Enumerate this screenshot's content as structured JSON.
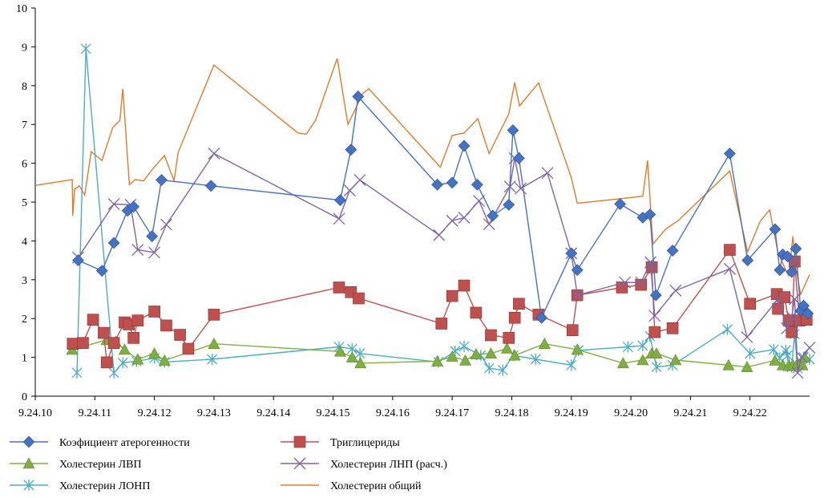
{
  "chart_data": {
    "type": "line",
    "ylim": [
      0,
      10
    ],
    "xlim": [
      10,
      23
    ],
    "yticks": [
      "0",
      "1",
      "2",
      "3",
      "4",
      "5",
      "6",
      "7",
      "8",
      "9",
      "10"
    ],
    "xticks": [
      {
        "x": 10,
        "label": "9.24.10"
      },
      {
        "x": 11,
        "label": "9.24.11"
      },
      {
        "x": 12,
        "label": "9.24.12"
      },
      {
        "x": 13,
        "label": "9.24.13"
      },
      {
        "x": 14,
        "label": "9.24.14"
      },
      {
        "x": 15,
        "label": "9.24.15"
      },
      {
        "x": 16,
        "label": "9.24.16"
      },
      {
        "x": 17,
        "label": "9.24.17"
      },
      {
        "x": 18,
        "label": "9.24.18"
      },
      {
        "x": 19,
        "label": "9.24.19"
      },
      {
        "x": 20,
        "label": "9.24.20"
      },
      {
        "x": 21,
        "label": "9.24.21"
      },
      {
        "x": 22,
        "label": "9.24.22"
      }
    ],
    "series": [
      {
        "name": "Холестерин общий",
        "color": "#E07B2A",
        "marker": "none",
        "points": [
          [
            10.0,
            5.43
          ],
          [
            10.62,
            5.58
          ],
          [
            10.63,
            4.65
          ],
          [
            10.66,
            5.33
          ],
          [
            10.74,
            5.42
          ],
          [
            10.83,
            5.18
          ],
          [
            10.94,
            6.3
          ],
          [
            11.12,
            6.07
          ],
          [
            11.3,
            6.92
          ],
          [
            11.42,
            7.1
          ],
          [
            11.47,
            7.92
          ],
          [
            11.58,
            5.45
          ],
          [
            11.68,
            5.58
          ],
          [
            11.82,
            5.55
          ],
          [
            11.96,
            5.83
          ],
          [
            12.17,
            6.2
          ],
          [
            12.33,
            5.55
          ],
          [
            12.4,
            6.28
          ],
          [
            13.0,
            8.53
          ],
          [
            14.41,
            6.78
          ],
          [
            14.55,
            6.75
          ],
          [
            14.71,
            7.12
          ],
          [
            15.07,
            8.7
          ],
          [
            15.25,
            7.0
          ],
          [
            15.5,
            7.8
          ],
          [
            15.6,
            7.92
          ],
          [
            16.8,
            5.9
          ],
          [
            17.0,
            6.72
          ],
          [
            17.2,
            6.78
          ],
          [
            17.43,
            7.15
          ],
          [
            17.62,
            6.25
          ],
          [
            17.95,
            7.27
          ],
          [
            18.05,
            8.08
          ],
          [
            18.13,
            7.48
          ],
          [
            18.25,
            7.7
          ],
          [
            18.45,
            8.07
          ],
          [
            19.0,
            5.63
          ],
          [
            19.1,
            4.97
          ],
          [
            19.9,
            5.1
          ],
          [
            20.2,
            5.15
          ],
          [
            20.28,
            6.07
          ],
          [
            20.37,
            3.92
          ],
          [
            20.58,
            4.3
          ],
          [
            20.8,
            4.53
          ],
          [
            21.66,
            5.8
          ],
          [
            21.96,
            3.72
          ],
          [
            22.17,
            4.5
          ],
          [
            22.33,
            4.8
          ],
          [
            22.47,
            3.7
          ],
          [
            22.6,
            3.25
          ],
          [
            22.65,
            3.1
          ],
          [
            22.72,
            4.12
          ],
          [
            22.77,
            3.3
          ],
          [
            22.85,
            2.62
          ],
          [
            23.0,
            3.13
          ]
        ]
      },
      {
        "name": "Холестерин ЛОНП",
        "color": "#4BACC6",
        "marker": "asterisk",
        "points": [
          [
            10.7,
            0.6
          ],
          [
            10.85,
            8.95
          ],
          [
            11.32,
            0.6
          ],
          [
            11.47,
            0.86
          ],
          [
            11.7,
            0.9
          ],
          [
            12.0,
            0.98
          ],
          [
            12.17,
            0.88
          ],
          [
            12.97,
            0.95
          ],
          [
            15.1,
            1.27
          ],
          [
            15.32,
            1.22
          ],
          [
            15.45,
            1.1
          ],
          [
            16.77,
            0.88
          ],
          [
            17.05,
            1.16
          ],
          [
            17.2,
            1.28
          ],
          [
            17.48,
            1.05
          ],
          [
            17.62,
            0.72
          ],
          [
            17.85,
            0.67
          ],
          [
            18.03,
            1.05
          ],
          [
            18.4,
            0.95
          ],
          [
            19.0,
            0.8
          ],
          [
            19.12,
            1.18
          ],
          [
            19.95,
            1.27
          ],
          [
            20.2,
            1.3
          ],
          [
            20.32,
            1.55
          ],
          [
            20.43,
            0.75
          ],
          [
            20.7,
            0.8
          ],
          [
            21.62,
            1.72
          ],
          [
            22.0,
            1.1
          ],
          [
            22.4,
            1.2
          ],
          [
            22.5,
            0.98
          ],
          [
            22.6,
            1.18
          ],
          [
            22.63,
            1.05
          ],
          [
            22.7,
            0.75
          ],
          [
            22.75,
            1.6
          ],
          [
            22.8,
            0.72
          ],
          [
            22.85,
            0.88
          ],
          [
            22.9,
            1.0
          ],
          [
            23.0,
            0.95
          ]
        ]
      },
      {
        "name": "Холестерин ЛВП",
        "color": "#7FAF42",
        "marker": "triangle",
        "points": [
          [
            10.62,
            1.2
          ],
          [
            11.2,
            1.45
          ],
          [
            11.35,
            1.4
          ],
          [
            11.5,
            1.2
          ],
          [
            11.72,
            0.95
          ],
          [
            12.0,
            1.1
          ],
          [
            12.17,
            0.92
          ],
          [
            13.0,
            1.35
          ],
          [
            15.12,
            1.15
          ],
          [
            15.32,
            1.0
          ],
          [
            15.46,
            0.85
          ],
          [
            16.75,
            0.9
          ],
          [
            17.0,
            1.02
          ],
          [
            17.22,
            0.92
          ],
          [
            17.4,
            1.08
          ],
          [
            17.65,
            1.1
          ],
          [
            17.92,
            1.23
          ],
          [
            18.05,
            1.05
          ],
          [
            18.55,
            1.35
          ],
          [
            19.1,
            1.2
          ],
          [
            19.87,
            0.85
          ],
          [
            20.2,
            0.93
          ],
          [
            20.35,
            1.1
          ],
          [
            20.43,
            1.1
          ],
          [
            20.75,
            0.93
          ],
          [
            21.64,
            0.8
          ],
          [
            21.95,
            0.75
          ],
          [
            22.42,
            0.92
          ],
          [
            22.55,
            0.8
          ],
          [
            22.65,
            0.78
          ],
          [
            22.72,
            0.8
          ],
          [
            22.8,
            0.85
          ],
          [
            22.88,
            0.8
          ],
          [
            22.92,
            1.0
          ]
        ]
      },
      {
        "name": "Триглицериды",
        "color": "#C0504D",
        "marker": "square",
        "points": [
          [
            10.63,
            1.35
          ],
          [
            10.8,
            1.37
          ],
          [
            10.97,
            1.97
          ],
          [
            11.15,
            1.63
          ],
          [
            11.2,
            0.87
          ],
          [
            11.32,
            1.37
          ],
          [
            11.5,
            1.9
          ],
          [
            11.57,
            1.85
          ],
          [
            11.65,
            1.5
          ],
          [
            11.72,
            1.95
          ],
          [
            12.0,
            2.18
          ],
          [
            12.2,
            1.82
          ],
          [
            12.43,
            1.58
          ],
          [
            12.57,
            1.22
          ],
          [
            13.0,
            2.1
          ],
          [
            15.1,
            2.8
          ],
          [
            15.3,
            2.68
          ],
          [
            15.43,
            2.52
          ],
          [
            16.82,
            1.87
          ],
          [
            17.0,
            2.58
          ],
          [
            17.2,
            2.85
          ],
          [
            17.4,
            2.15
          ],
          [
            17.65,
            1.57
          ],
          [
            17.95,
            1.5
          ],
          [
            18.05,
            2.02
          ],
          [
            18.12,
            2.38
          ],
          [
            18.45,
            2.1
          ],
          [
            19.02,
            1.7
          ],
          [
            19.1,
            2.6
          ],
          [
            19.85,
            2.8
          ],
          [
            20.17,
            2.87
          ],
          [
            20.35,
            3.32
          ],
          [
            20.4,
            1.65
          ],
          [
            20.7,
            1.75
          ],
          [
            21.66,
            3.77
          ],
          [
            22.0,
            2.38
          ],
          [
            22.45,
            2.63
          ],
          [
            22.47,
            2.25
          ],
          [
            22.58,
            2.55
          ],
          [
            22.65,
            1.95
          ],
          [
            22.7,
            1.65
          ],
          [
            22.75,
            3.47
          ],
          [
            22.83,
            1.95
          ],
          [
            22.95,
            1.97
          ]
        ]
      },
      {
        "name": "Холестерин ЛНП (расч.)",
        "color": "#8064A2",
        "marker": "x",
        "points": [
          [
            10.72,
            3.57
          ],
          [
            11.32,
            4.95
          ],
          [
            11.6,
            4.93
          ],
          [
            11.72,
            3.77
          ],
          [
            12.0,
            3.7
          ],
          [
            12.2,
            4.42
          ],
          [
            13.0,
            6.25
          ],
          [
            15.1,
            4.57
          ],
          [
            15.28,
            5.3
          ],
          [
            15.45,
            5.57
          ],
          [
            16.78,
            4.15
          ],
          [
            17.0,
            4.52
          ],
          [
            17.2,
            4.6
          ],
          [
            17.45,
            5.03
          ],
          [
            17.62,
            4.43
          ],
          [
            17.97,
            5.4
          ],
          [
            18.05,
            6.13
          ],
          [
            18.15,
            5.35
          ],
          [
            18.6,
            5.75
          ],
          [
            19.0,
            3.68
          ],
          [
            19.1,
            2.6
          ],
          [
            19.9,
            2.93
          ],
          [
            20.17,
            2.93
          ],
          [
            20.33,
            3.45
          ],
          [
            20.4,
            2.07
          ],
          [
            20.75,
            2.72
          ],
          [
            21.66,
            3.28
          ],
          [
            21.95,
            1.52
          ],
          [
            22.47,
            2.5
          ],
          [
            22.62,
            1.75
          ],
          [
            22.7,
            2.05
          ],
          [
            22.75,
            2.5
          ],
          [
            22.8,
            0.6
          ],
          [
            22.87,
            1.0
          ],
          [
            23.0,
            1.25
          ]
        ]
      },
      {
        "name": "Коэфициент атерогенности",
        "color": "#4472C4",
        "marker": "diamond",
        "points": [
          [
            10.72,
            3.5
          ],
          [
            11.12,
            3.23
          ],
          [
            11.32,
            3.95
          ],
          [
            11.55,
            4.78
          ],
          [
            11.65,
            4.88
          ],
          [
            11.96,
            4.12
          ],
          [
            12.12,
            5.57
          ],
          [
            12.95,
            5.42
          ],
          [
            15.12,
            5.05
          ],
          [
            15.3,
            6.35
          ],
          [
            15.42,
            7.72
          ],
          [
            16.75,
            5.45
          ],
          [
            17.0,
            5.5
          ],
          [
            17.2,
            6.45
          ],
          [
            17.42,
            5.45
          ],
          [
            17.68,
            4.65
          ],
          [
            17.95,
            4.93
          ],
          [
            18.02,
            6.85
          ],
          [
            18.12,
            6.13
          ],
          [
            18.5,
            2.02
          ],
          [
            19.0,
            3.68
          ],
          [
            19.1,
            3.25
          ],
          [
            19.82,
            4.95
          ],
          [
            20.2,
            4.6
          ],
          [
            20.32,
            4.68
          ],
          [
            20.42,
            2.6
          ],
          [
            20.7,
            3.75
          ],
          [
            21.66,
            6.25
          ],
          [
            21.96,
            3.5
          ],
          [
            22.42,
            4.3
          ],
          [
            22.5,
            3.25
          ],
          [
            22.55,
            3.65
          ],
          [
            22.63,
            3.6
          ],
          [
            22.7,
            3.2
          ],
          [
            22.77,
            3.8
          ],
          [
            22.85,
            2.2
          ],
          [
            22.9,
            2.33
          ],
          [
            22.97,
            2.13
          ]
        ]
      }
    ],
    "legend_order": [
      "Коэфициент атерогенности",
      "Триглицериды",
      "Холестерин ЛВП",
      "Холестерин ЛНП (расч.)",
      "Холестерин ЛОНП",
      "Холестерин общий"
    ],
    "legend_position": "bottom"
  }
}
